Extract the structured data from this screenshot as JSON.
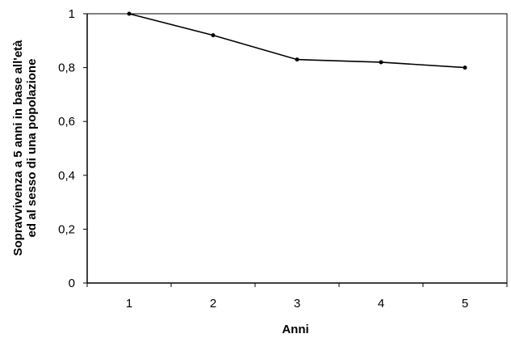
{
  "chart_data": {
    "type": "line",
    "categories": [
      "1",
      "2",
      "3",
      "4",
      "5"
    ],
    "series": [
      {
        "values": [
          1.0,
          0.92,
          0.83,
          0.82,
          0.8
        ]
      }
    ],
    "xlabel": "Anni",
    "ylabel_line1": "Sopravvivenza a 5 anni in base all'età",
    "ylabel_line2": "ed al sesso di una popolazione",
    "ylim": [
      0,
      1
    ],
    "yticks": [
      "0",
      "0,2",
      "0,4",
      "0,6",
      "0,8",
      "1"
    ],
    "grid": false,
    "legend": "none",
    "colors": {
      "line": "#000000",
      "frame": "#000000"
    }
  }
}
